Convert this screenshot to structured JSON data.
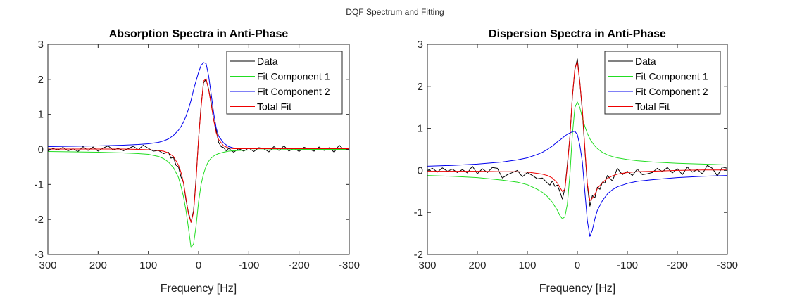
{
  "suptitle": "DQF Spectrum and Fitting",
  "colors": {
    "Data": "#000000",
    "Fit Component 1": "#22dd22",
    "Fit Component 2": "#0000ee",
    "Total Fit": "#ee0000"
  },
  "chart_data": [
    {
      "type": "line",
      "title": "Absorption Spectra in Anti-Phase",
      "xlabel": "Frequency [Hz]",
      "ylabel": "",
      "xlim": [
        300,
        -300
      ],
      "x_reversed": true,
      "ylim": [
        -3,
        3
      ],
      "xticks": [
        "300",
        "200",
        "100",
        "0",
        "-100",
        "-200",
        "-300"
      ],
      "xtick_values": [
        300,
        200,
        100,
        0,
        -100,
        -200,
        -300
      ],
      "yticks": [
        "-3",
        "-2",
        "-1",
        "0",
        "1",
        "2",
        "3"
      ],
      "ytick_values": [
        -3,
        -2,
        -1,
        0,
        1,
        2,
        3
      ],
      "grid": false,
      "legend": "top-right",
      "fit_x": [
        300,
        250,
        200,
        150,
        120,
        100,
        80,
        70,
        60,
        50,
        40,
        35,
        30,
        25,
        20,
        15,
        10,
        5,
        0,
        -5,
        -10,
        -15,
        -20,
        -25,
        -30,
        -35,
        -40,
        -50,
        -60,
        -70,
        -80,
        -100,
        -120,
        -150,
        -200,
        -250,
        -300
      ],
      "data_x": [
        300,
        290,
        280,
        270,
        260,
        250,
        240,
        230,
        220,
        210,
        200,
        190,
        180,
        170,
        160,
        150,
        140,
        130,
        120,
        110,
        100,
        90,
        80,
        70,
        60,
        55,
        50,
        45,
        40,
        35,
        30,
        25,
        20,
        15,
        10,
        5,
        0,
        -5,
        -10,
        -15,
        -20,
        -25,
        -30,
        -35,
        -40,
        -45,
        -50,
        -55,
        -60,
        -70,
        -80,
        -90,
        -100,
        -110,
        -120,
        -130,
        -140,
        -150,
        -160,
        -170,
        -180,
        -190,
        -200,
        -210,
        -220,
        -230,
        -240,
        -250,
        -260,
        -270,
        -280,
        -290,
        -300
      ],
      "series": [
        {
          "name": "Data",
          "x_key": "data_x",
          "values": [
            -0.05,
            0.03,
            -0.02,
            0.06,
            -0.04,
            0.02,
            -0.06,
            0.08,
            -0.03,
            0.07,
            -0.05,
            0.04,
            0.1,
            -0.02,
            0.03,
            -0.04,
            0.02,
            0.09,
            -0.01,
            0.12,
            0.03,
            -0.05,
            -0.03,
            -0.12,
            -0.08,
            -0.25,
            -0.22,
            -0.45,
            -0.5,
            -0.78,
            -0.95,
            -1.45,
            -1.8,
            -2.08,
            -1.75,
            -0.85,
            0.3,
            1.25,
            1.9,
            2.0,
            1.72,
            1.35,
            0.85,
            0.55,
            0.2,
            0.08,
            0.05,
            -0.04,
            0.03,
            -0.08,
            0.02,
            -0.05,
            0.04,
            -0.06,
            0.05,
            0.02,
            -0.07,
            0.08,
            -0.03,
            0.1,
            -0.05,
            0.04,
            -0.06,
            0.06,
            0.01,
            -0.05,
            0.07,
            -0.03,
            0.05,
            -0.08,
            0.12,
            -0.02,
            0.04
          ]
        },
        {
          "name": "Fit Component 1",
          "x_key": "fit_x",
          "values": [
            -0.06,
            -0.07,
            -0.08,
            -0.1,
            -0.12,
            -0.14,
            -0.2,
            -0.26,
            -0.36,
            -0.52,
            -0.8,
            -1.05,
            -1.35,
            -1.75,
            -2.25,
            -2.8,
            -2.7,
            -2.2,
            -1.5,
            -1.0,
            -0.7,
            -0.48,
            -0.34,
            -0.25,
            -0.19,
            -0.15,
            -0.12,
            -0.08,
            -0.05,
            -0.04,
            -0.03,
            -0.02,
            -0.015,
            -0.01,
            0,
            0,
            0
          ]
        },
        {
          "name": "Fit Component 2",
          "x_key": "fit_x",
          "values": [
            0.08,
            0.09,
            0.1,
            0.12,
            0.14,
            0.16,
            0.2,
            0.24,
            0.3,
            0.4,
            0.55,
            0.65,
            0.78,
            0.95,
            1.15,
            1.4,
            1.7,
            1.95,
            2.2,
            2.4,
            2.48,
            2.45,
            2.1,
            1.6,
            1.05,
            0.62,
            0.38,
            0.18,
            0.08,
            0.04,
            0.03,
            0.02,
            0.02,
            0.02,
            0.02,
            0.02,
            0.02
          ]
        },
        {
          "name": "Total Fit",
          "x_key": "fit_x",
          "values": [
            0.01,
            0.01,
            0.01,
            0.01,
            0.0,
            -0.01,
            -0.03,
            -0.05,
            -0.1,
            -0.2,
            -0.45,
            -0.65,
            -0.95,
            -1.4,
            -1.85,
            -2.08,
            -1.8,
            -0.9,
            0.3,
            1.2,
            1.95,
            2.02,
            1.7,
            1.3,
            0.85,
            0.48,
            0.28,
            0.1,
            0.04,
            0.02,
            0.02,
            0.02,
            0.02,
            0.02,
            0.02,
            0.02,
            0.02
          ]
        }
      ]
    },
    {
      "type": "line",
      "title": "Dispersion Spectra in Anti-Phase",
      "xlabel": "Frequency [Hz]",
      "ylabel": "",
      "xlim": [
        300,
        -300
      ],
      "x_reversed": true,
      "ylim": [
        -2,
        3
      ],
      "xticks": [
        "300",
        "200",
        "100",
        "0",
        "-100",
        "-200",
        "-300"
      ],
      "xtick_values": [
        300,
        200,
        100,
        0,
        -100,
        -200,
        -300
      ],
      "yticks": [
        "-2",
        "-1",
        "0",
        "1",
        "2",
        "3"
      ],
      "ytick_values": [
        -2,
        -1,
        0,
        1,
        2,
        3
      ],
      "grid": false,
      "legend": "top-right",
      "fit_x": [
        300,
        250,
        200,
        150,
        120,
        100,
        80,
        70,
        60,
        50,
        40,
        35,
        30,
        25,
        20,
        15,
        10,
        5,
        0,
        -5,
        -10,
        -15,
        -20,
        -25,
        -30,
        -35,
        -40,
        -50,
        -60,
        -70,
        -80,
        -100,
        -120,
        -150,
        -200,
        -250,
        -300
      ],
      "data_x": [
        300,
        290,
        280,
        270,
        260,
        250,
        240,
        230,
        220,
        210,
        200,
        190,
        180,
        170,
        160,
        150,
        140,
        130,
        120,
        110,
        100,
        90,
        80,
        70,
        60,
        55,
        50,
        45,
        40,
        35,
        30,
        25,
        20,
        15,
        10,
        5,
        0,
        -5,
        -10,
        -15,
        -20,
        -25,
        -30,
        -35,
        -40,
        -45,
        -50,
        -55,
        -60,
        -70,
        -80,
        -90,
        -100,
        -110,
        -120,
        -130,
        -140,
        -150,
        -160,
        -170,
        -180,
        -190,
        -200,
        -210,
        -220,
        -230,
        -240,
        -250,
        -260,
        -270,
        -280,
        -290,
        -300
      ],
      "series": [
        {
          "name": "Data",
          "x_key": "data_x",
          "values": [
            0.0,
            0.05,
            -0.04,
            0.06,
            -0.02,
            0.03,
            -0.05,
            0.02,
            -0.06,
            0.1,
            -0.08,
            0.04,
            -0.05,
            0.07,
            0.05,
            -0.18,
            -0.1,
            -0.05,
            0.0,
            -0.15,
            -0.05,
            -0.12,
            -0.2,
            -0.18,
            -0.3,
            -0.35,
            -0.25,
            -0.38,
            -0.35,
            -0.5,
            -0.68,
            -0.42,
            0.15,
            0.8,
            1.75,
            2.4,
            2.65,
            2.1,
            1.4,
            0.5,
            -0.35,
            -0.85,
            -0.6,
            -0.65,
            -0.4,
            -0.45,
            -0.28,
            -0.3,
            -0.12,
            -0.25,
            0.05,
            -0.1,
            -0.02,
            -0.12,
            0.03,
            -0.1,
            -0.08,
            -0.05,
            0.05,
            -0.03,
            0.07,
            -0.06,
            0.04,
            -0.1,
            0.08,
            -0.04,
            0.02,
            -0.08,
            0.12,
            0.05,
            -0.13,
            0.08,
            0.05
          ]
        },
        {
          "name": "Fit Component 1",
          "x_key": "fit_x",
          "values": [
            -0.12,
            -0.14,
            -0.17,
            -0.23,
            -0.28,
            -0.34,
            -0.45,
            -0.52,
            -0.62,
            -0.76,
            -0.95,
            -1.07,
            -1.15,
            -1.1,
            -0.8,
            -0.1,
            0.85,
            1.5,
            1.63,
            1.5,
            1.25,
            1.05,
            0.88,
            0.75,
            0.66,
            0.58,
            0.52,
            0.43,
            0.37,
            0.33,
            0.3,
            0.26,
            0.23,
            0.2,
            0.17,
            0.15,
            0.13
          ]
        },
        {
          "name": "Fit Component 2",
          "x_key": "fit_x",
          "values": [
            0.1,
            0.12,
            0.15,
            0.2,
            0.25,
            0.3,
            0.38,
            0.43,
            0.5,
            0.58,
            0.68,
            0.72,
            0.77,
            0.82,
            0.86,
            0.89,
            0.92,
            0.93,
            0.85,
            0.6,
            0.2,
            -0.5,
            -1.2,
            -1.57,
            -1.42,
            -1.15,
            -0.95,
            -0.72,
            -0.56,
            -0.46,
            -0.39,
            -0.31,
            -0.26,
            -0.22,
            -0.17,
            -0.14,
            -0.12
          ]
        },
        {
          "name": "Total Fit",
          "x_key": "fit_x",
          "values": [
            -0.02,
            -0.02,
            -0.02,
            -0.03,
            -0.03,
            -0.04,
            -0.07,
            -0.09,
            -0.12,
            -0.18,
            -0.3,
            -0.4,
            -0.5,
            -0.45,
            0.1,
            0.79,
            1.77,
            2.43,
            2.58,
            2.1,
            1.45,
            0.55,
            -0.32,
            -0.72,
            -0.66,
            -0.57,
            -0.43,
            -0.29,
            -0.19,
            -0.13,
            -0.09,
            -0.05,
            -0.03,
            -0.02,
            0.0,
            0.01,
            0.01
          ]
        }
      ]
    }
  ]
}
